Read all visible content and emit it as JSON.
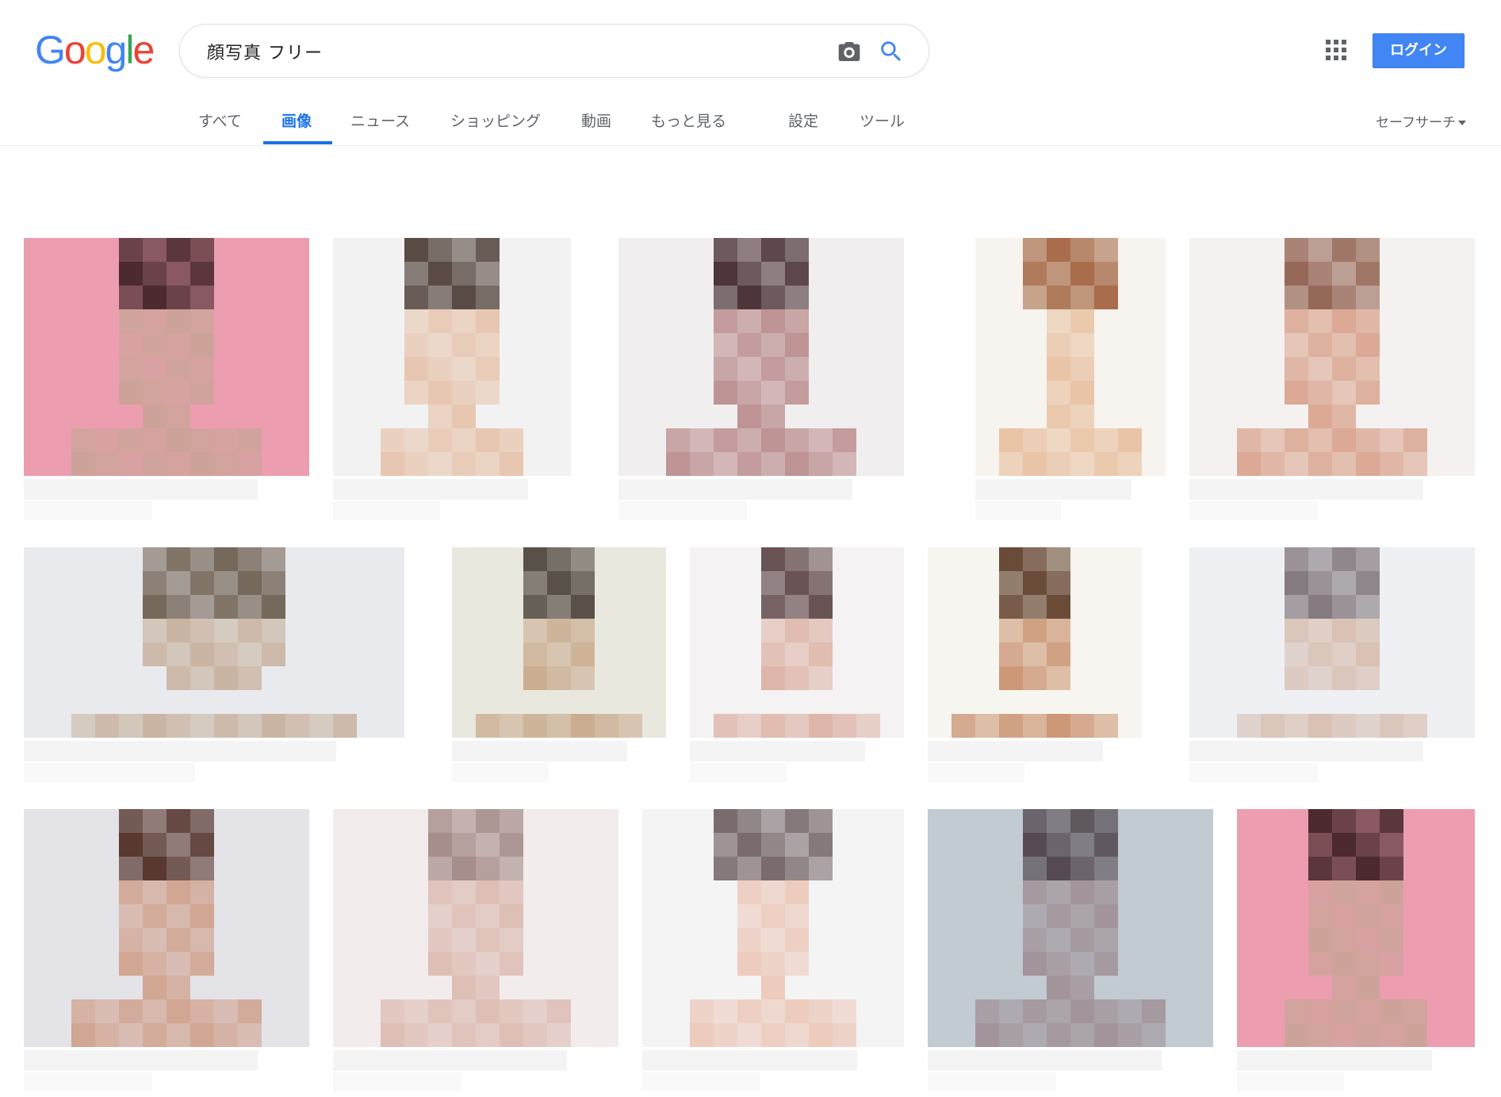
{
  "header": {
    "logo": [
      "G",
      "o",
      "o",
      "g",
      "l",
      "e"
    ],
    "logo_colors": [
      "#4285f4",
      "#ea4335",
      "#fbbc05",
      "#4285f4",
      "#34a853",
      "#ea4335"
    ],
    "search_query": "顔写真 フリー",
    "camera_icon": "camera-icon",
    "search_icon": "search-icon",
    "apps_icon": "apps-grid-icon",
    "login_label": "ログイン",
    "accent": "#4285f4"
  },
  "tabs": {
    "items": [
      {
        "label": "すべて",
        "active": false
      },
      {
        "label": "画像",
        "active": true
      },
      {
        "label": "ニュース",
        "active": false
      },
      {
        "label": "ショッピング",
        "active": false
      },
      {
        "label": "動画",
        "active": false
      },
      {
        "label": "もっと見る",
        "active": false
      },
      {
        "label": "設定",
        "active": false
      },
      {
        "label": "ツール",
        "active": false
      }
    ],
    "safesearch_label": "セーフサーチ"
  },
  "results": {
    "thumbnails": [
      {
        "bg": "#ec9eb0",
        "face": "#c9a497",
        "hair": "#3b1f22"
      },
      {
        "bg": "#f2f2f2",
        "face": "#e7c3ab",
        "hair": "#4a3a33"
      },
      {
        "bg": "#f1eef0",
        "face": "#b98a8a",
        "hair": "#3c2227"
      },
      {
        "bg": "#f7f3ef",
        "face": "#e8bf9f",
        "hair": "#a0603b"
      },
      {
        "bg": "#f4f1f0",
        "face": "#d9a28c",
        "hair": "#8d5a48"
      },
      {
        "bg": "#e9eaed",
        "face": "#c7b09c",
        "hair": "#6b5b4b"
      },
      {
        "bg": "#e9e8df",
        "face": "#c8a88a",
        "hair": "#4b4239"
      },
      {
        "bg": "#f4f2f3",
        "face": "#dcb0a2",
        "hair": "#5c4344"
      },
      {
        "bg": "#f6f5ef",
        "face": "#c88f6c",
        "hair": "#5b3a25"
      },
      {
        "bg": "#eef0f3",
        "face": "#d6bcae",
        "hair": "#7a6f75"
      },
      {
        "bg": "#e4e3e8",
        "face": "#cf9f8a",
        "hair": "#4a271d"
      },
      {
        "bg": "#f2ecec",
        "face": "#dcbab0",
        "hair": "#9e8480"
      },
      {
        "bg": "#f4f4f5",
        "face": "#ecc8b8",
        "hair": "#6e5e60"
      },
      {
        "bg": "#c2cad2",
        "face": "#9f8f95",
        "hair": "#4a3e46"
      },
      {
        "bg": "#ec9eb0",
        "face": "#c9a497",
        "hair": "#3b1f22"
      }
    ]
  }
}
